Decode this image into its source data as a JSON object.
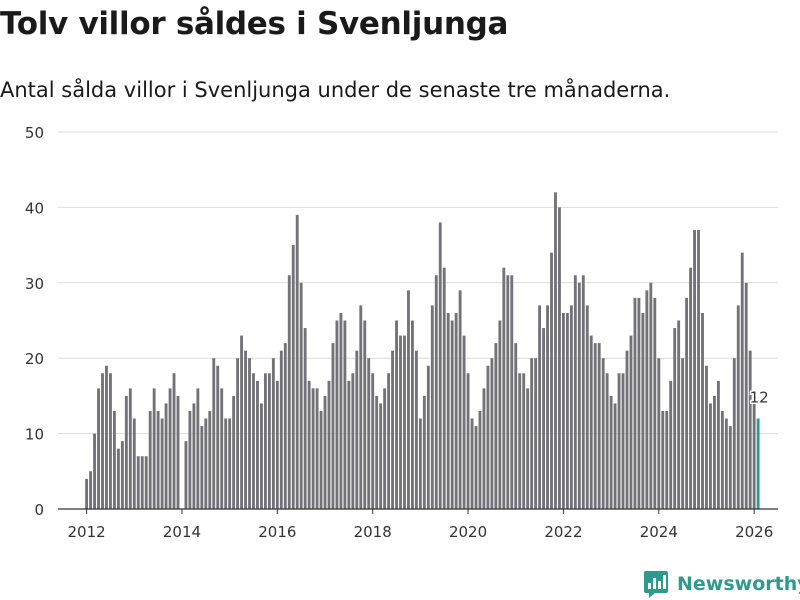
{
  "title": "Tolv villor såldes i Svenljunga",
  "subtitle": "Antal sålda villor i Svenljunga under de senaste tre månaderna.",
  "brand": {
    "name": "Newsworthy",
    "color": "#2c9b8e"
  },
  "chart_data": {
    "type": "bar",
    "title": "Tolv villor såldes i Svenljunga",
    "xlabel": "",
    "ylabel": "",
    "ylim": [
      0,
      50
    ],
    "yticks": [
      "0",
      "10",
      "20",
      "30",
      "40",
      "50"
    ],
    "xticks": [
      "2012",
      "2014",
      "2016",
      "2018",
      "2020",
      "2022",
      "2024",
      "2026"
    ],
    "xrange": [
      2011.4,
      2026.5
    ],
    "start": "2012-01",
    "frequency": "monthly",
    "bar_color": "#737278",
    "highlight_color": "#2a9d8f",
    "highlight_label": "12",
    "grid": true,
    "values": [
      4,
      5,
      10,
      16,
      18,
      19,
      18,
      13,
      8,
      9,
      15,
      16,
      12,
      7,
      7,
      7,
      13,
      16,
      13,
      12,
      14,
      16,
      18,
      15,
      0,
      9,
      13,
      14,
      16,
      11,
      12,
      13,
      20,
      19,
      16,
      12,
      12,
      15,
      20,
      23,
      21,
      20,
      18,
      17,
      14,
      18,
      18,
      20,
      17,
      21,
      22,
      31,
      35,
      39,
      30,
      24,
      17,
      16,
      16,
      13,
      15,
      17,
      22,
      25,
      26,
      25,
      17,
      18,
      21,
      27,
      25,
      20,
      18,
      15,
      14,
      16,
      18,
      21,
      25,
      23,
      23,
      29,
      25,
      21,
      12,
      15,
      19,
      27,
      31,
      38,
      32,
      26,
      25,
      26,
      29,
      23,
      18,
      12,
      11,
      13,
      16,
      19,
      20,
      22,
      25,
      32,
      31,
      31,
      22,
      18,
      18,
      16,
      20,
      20,
      27,
      24,
      27,
      34,
      42,
      40,
      26,
      26,
      27,
      31,
      30,
      31,
      27,
      23,
      22,
      22,
      20,
      18,
      15,
      14,
      18,
      18,
      21,
      23,
      28,
      28,
      26,
      29,
      30,
      28,
      20,
      13,
      13,
      17,
      24,
      25,
      20,
      28,
      32,
      37,
      37,
      26,
      19,
      14,
      15,
      17,
      13,
      12,
      11,
      20,
      27,
      34,
      30,
      21,
      14,
      12
    ]
  }
}
